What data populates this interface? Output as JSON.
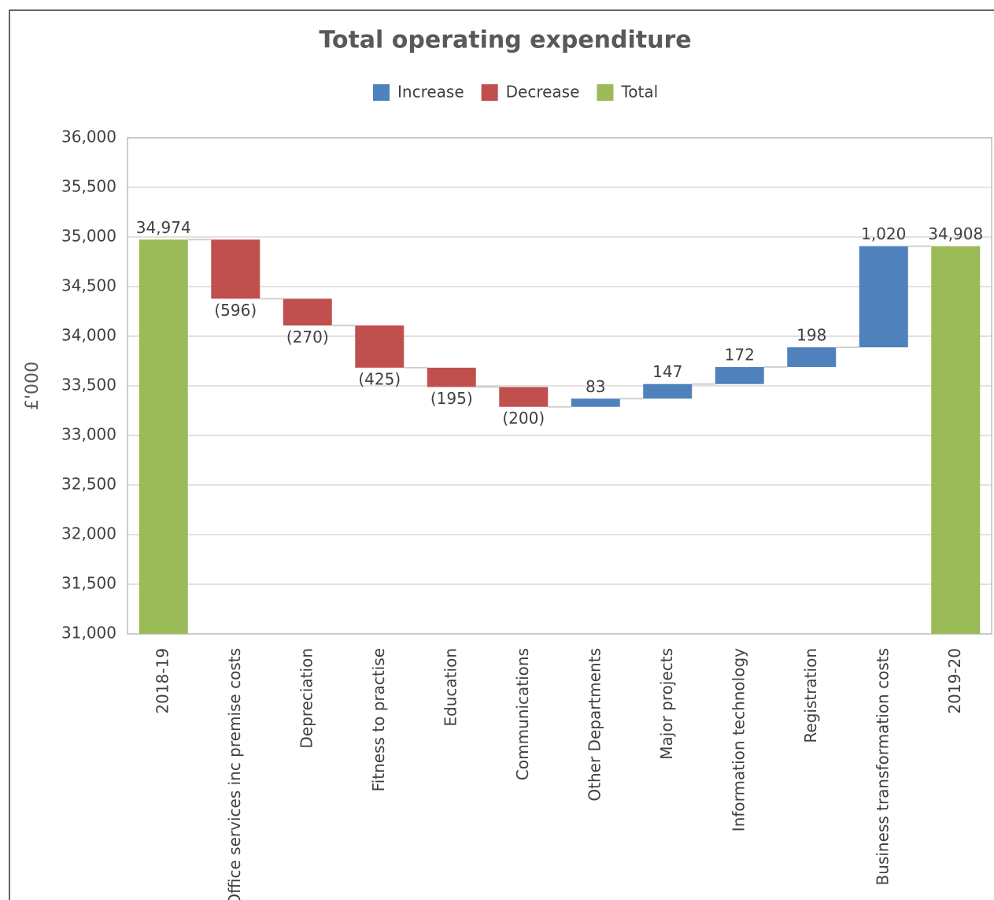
{
  "chart_data": {
    "type": "waterfall",
    "title": "Total operating expenditure",
    "y_label": "£'000",
    "categories": [
      "2018-19",
      "Office services inc premise costs",
      "Depreciation",
      "Fitness to practise",
      "Education",
      "Communications",
      "Other Departments",
      "Major projects",
      "Information technology",
      "Registration",
      "Business transformation costs",
      "2019-20"
    ],
    "values": [
      34974,
      -596,
      -270,
      -425,
      -195,
      -200,
      83,
      147,
      172,
      198,
      1020,
      34908
    ],
    "value_labels": [
      "34,974",
      "(596)",
      "(270)",
      "(425)",
      "(195)",
      "(200)",
      "83",
      "147",
      "172",
      "198",
      "1,020",
      "34,908"
    ],
    "is_total": [
      true,
      false,
      false,
      false,
      false,
      false,
      false,
      false,
      false,
      false,
      false,
      true
    ],
    "legend": [
      {
        "name": "Increase",
        "color": "#4f81bd"
      },
      {
        "name": "Decrease",
        "color": "#c0504d"
      },
      {
        "name": "Total",
        "color": "#9bbb59"
      }
    ],
    "ylim": [
      31000,
      36000
    ],
    "yticks": [
      {
        "value": 31000,
        "label": "31,000"
      },
      {
        "value": 31500,
        "label": "31,500"
      },
      {
        "value": 32000,
        "label": "32,000"
      },
      {
        "value": 32500,
        "label": "32,500"
      },
      {
        "value": 33000,
        "label": "33,000"
      },
      {
        "value": 33500,
        "label": "33,500"
      },
      {
        "value": 34000,
        "label": "34,000"
      },
      {
        "value": 34500,
        "label": "34,500"
      },
      {
        "value": 35000,
        "label": "35,000"
      },
      {
        "value": 35500,
        "label": "35,500"
      },
      {
        "value": 36000,
        "label": "36,000"
      }
    ],
    "grid": true
  }
}
